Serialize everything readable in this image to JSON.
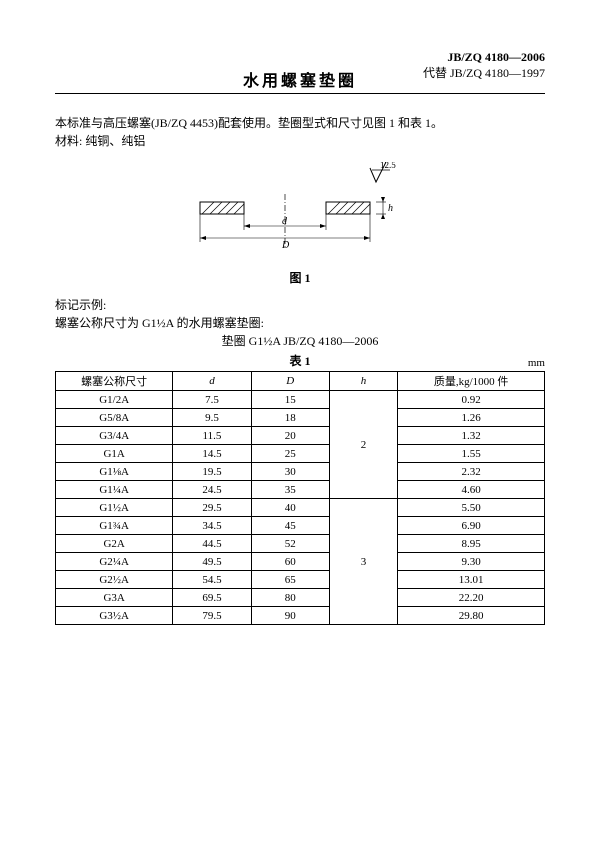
{
  "header": {
    "std_current": "JB/ZQ 4180—2006",
    "std_replace": "代替 JB/ZQ 4180—1997"
  },
  "title": "水用螺塞垫圈",
  "intro": {
    "line1": "本标准与高压螺塞(JB/ZQ 4453)配套使用。垫圈型式和尺寸见图 1 和表 1。",
    "line2": "材料: 纯铜、纯铝"
  },
  "figure": {
    "caption": "图 1",
    "label_d": "d",
    "label_D": "D",
    "label_h": "h",
    "roughness": "12.5"
  },
  "marking": {
    "l1": "标记示例:",
    "l2": "螺塞公称尺寸为 G1½A 的水用螺塞垫圈:",
    "l3": "垫圈   G1½A   JB/ZQ 4180—2006"
  },
  "table": {
    "caption": "表 1",
    "unit": "mm",
    "headers": {
      "c1": "螺塞公称尺寸",
      "c2": "d",
      "c3": "D",
      "c4": "h",
      "c5": "质量,kg/1000 件"
    },
    "col_widths": [
      "24%",
      "16%",
      "16%",
      "14%",
      "30%"
    ],
    "rows": [
      {
        "size": "G1/2A",
        "d": "7.5",
        "D": "15",
        "h": "2",
        "w": "0.92",
        "h_rowspan": 6
      },
      {
        "size": "G5/8A",
        "d": "9.5",
        "D": "18",
        "w": "1.26"
      },
      {
        "size": "G3/4A",
        "d": "11.5",
        "D": "20",
        "w": "1.32"
      },
      {
        "size": "G1A",
        "d": "14.5",
        "D": "25",
        "w": "1.55"
      },
      {
        "size": "G1⅛A",
        "d": "19.5",
        "D": "30",
        "w": "2.32"
      },
      {
        "size": "G1¼A",
        "d": "24.5",
        "D": "35",
        "w": "4.60"
      },
      {
        "size": "G1½A",
        "d": "29.5",
        "D": "40",
        "h": "3",
        "w": "5.50",
        "h_rowspan": 7
      },
      {
        "size": "G1¾A",
        "d": "34.5",
        "D": "45",
        "w": "6.90"
      },
      {
        "size": "G2A",
        "d": "44.5",
        "D": "52",
        "w": "8.95"
      },
      {
        "size": "G2¼A",
        "d": "49.5",
        "D": "60",
        "w": "9.30"
      },
      {
        "size": "G2½A",
        "d": "54.5",
        "D": "65",
        "w": "13.01"
      },
      {
        "size": "G3A",
        "d": "69.5",
        "D": "80",
        "w": "22.20"
      },
      {
        "size": "G3½A",
        "d": "79.5",
        "D": "90",
        "w": "29.80"
      }
    ]
  },
  "colors": {
    "text": "#000000",
    "bg": "#ffffff",
    "line": "#000000"
  }
}
